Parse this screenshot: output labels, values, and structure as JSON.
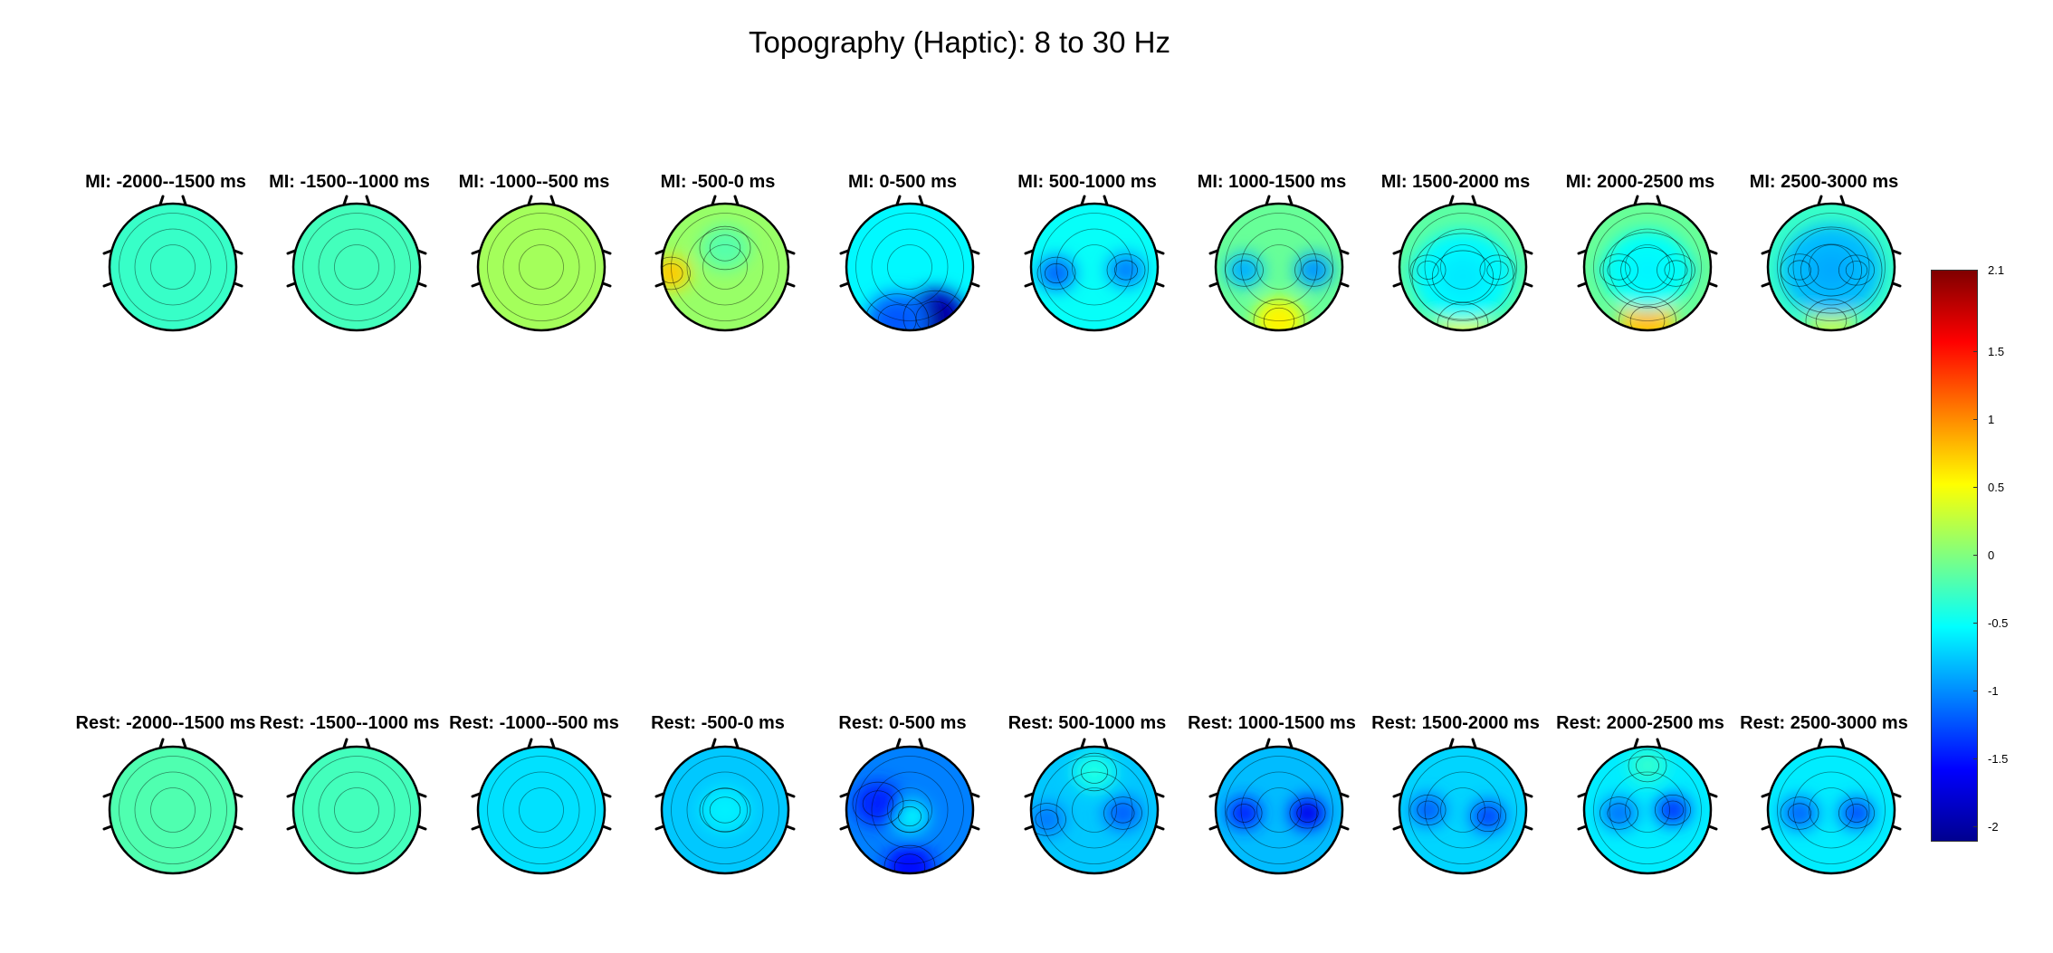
{
  "title": "Topography (Haptic): 8 to 30 Hz",
  "chart_data": {
    "type": "heatmap",
    "title": "Topography (Haptic): 8 to 30 Hz",
    "rows": [
      {
        "condition": "MI",
        "panels": [
          {
            "label": "MI: -2000--1500 ms",
            "base": -0.3,
            "blobs": []
          },
          {
            "label": "MI: -1500--1000 ms",
            "base": -0.25,
            "blobs": []
          },
          {
            "label": "MI: -1000--500 ms",
            "base": 0.15,
            "blobs": []
          },
          {
            "label": "MI: -500-0 ms",
            "base": 0.1,
            "blobs": [
              {
                "u": -0.85,
                "v": 0.1,
                "a": 0.6,
                "r": 0.3
              },
              {
                "u": 0,
                "v": -0.3,
                "a": -0.25,
                "r": 0.4
              }
            ]
          },
          {
            "label": "MI: 0-500 ms",
            "base": -0.55,
            "blobs": [
              {
                "u": 0.4,
                "v": 0.8,
                "a": -1.3,
                "r": 0.5
              },
              {
                "u": -0.2,
                "v": 0.85,
                "a": -0.6,
                "r": 0.5
              }
            ]
          },
          {
            "label": "MI: 500-1000 ms",
            "base": -0.5,
            "blobs": [
              {
                "u": -0.6,
                "v": 0.1,
                "a": -0.6,
                "r": 0.3
              },
              {
                "u": 0.5,
                "v": 0.05,
                "a": -0.5,
                "r": 0.3
              }
            ]
          },
          {
            "label": "MI: 1000-1500 ms",
            "base": -0.1,
            "blobs": [
              {
                "u": -0.55,
                "v": 0.05,
                "a": -0.7,
                "r": 0.3
              },
              {
                "u": 0.55,
                "v": 0.05,
                "a": -0.8,
                "r": 0.3
              },
              {
                "u": 0,
                "v": 0.85,
                "a": 0.6,
                "r": 0.4
              }
            ]
          },
          {
            "label": "MI: 1500-2000 ms",
            "base": -0.15,
            "blobs": [
              {
                "u": -0.55,
                "v": 0.05,
                "a": -0.8,
                "r": 0.28
              },
              {
                "u": 0.55,
                "v": 0.05,
                "a": -0.9,
                "r": 0.28
              },
              {
                "u": 0,
                "v": 0.9,
                "a": 0.5,
                "r": 0.4
              },
              {
                "u": 0,
                "v": 0.15,
                "a": -0.4,
                "r": 0.8
              }
            ]
          },
          {
            "label": "MI: 2000-2500 ms",
            "base": -0.1,
            "blobs": [
              {
                "u": -0.45,
                "v": 0.05,
                "a": -0.8,
                "r": 0.3
              },
              {
                "u": 0.45,
                "v": 0.05,
                "a": -1.1,
                "r": 0.3
              },
              {
                "u": 0,
                "v": 0.85,
                "a": 0.8,
                "r": 0.45
              },
              {
                "u": 0,
                "v": 0.05,
                "a": -0.4,
                "r": 0.7
              }
            ]
          },
          {
            "label": "MI: 2500-3000 ms",
            "base": -0.3,
            "blobs": [
              {
                "u": -0.5,
                "v": 0.05,
                "a": -1.0,
                "r": 0.3
              },
              {
                "u": 0.4,
                "v": 0.05,
                "a": -1.6,
                "r": 0.28
              },
              {
                "u": 0,
                "v": 0.85,
                "a": 0.5,
                "r": 0.4
              },
              {
                "u": 0,
                "v": 0.05,
                "a": -0.5,
                "r": 0.8
              }
            ]
          }
        ]
      },
      {
        "condition": "Rest",
        "panels": [
          {
            "label": "Rest: -2000--1500 ms",
            "base": -0.2,
            "blobs": []
          },
          {
            "label": "Rest: -1500--1000 ms",
            "base": -0.25,
            "blobs": []
          },
          {
            "label": "Rest: -1000--500 ms",
            "base": -0.65,
            "blobs": []
          },
          {
            "label": "Rest: -500-0 ms",
            "base": -0.75,
            "blobs": [
              {
                "u": 0,
                "v": 0,
                "a": 0.15,
                "r": 0.4
              }
            ]
          },
          {
            "label": "Rest: 0-500 ms",
            "base": -1.05,
            "blobs": [
              {
                "u": 0,
                "v": 0.1,
                "a": 0.45,
                "r": 0.3
              },
              {
                "u": -0.5,
                "v": -0.1,
                "a": -0.35,
                "r": 0.4
              },
              {
                "u": 0,
                "v": 0.9,
                "a": -0.45,
                "r": 0.4
              }
            ]
          },
          {
            "label": "Rest: 500-1000 ms",
            "base": -0.75,
            "blobs": [
              {
                "u": -0.75,
                "v": 0.15,
                "a": -0.3,
                "r": 0.3
              },
              {
                "u": 0.45,
                "v": 0.05,
                "a": -0.4,
                "r": 0.3
              },
              {
                "u": 0,
                "v": -0.6,
                "a": 0.3,
                "r": 0.35
              }
            ]
          },
          {
            "label": "Rest: 1000-1500 ms",
            "base": -0.8,
            "blobs": [
              {
                "u": -0.55,
                "v": 0.05,
                "a": -0.6,
                "r": 0.28
              },
              {
                "u": 0.45,
                "v": 0.05,
                "a": -0.8,
                "r": 0.28
              }
            ]
          },
          {
            "label": "Rest: 1500-2000 ms",
            "base": -0.7,
            "blobs": [
              {
                "u": -0.55,
                "v": 0,
                "a": -0.45,
                "r": 0.28
              },
              {
                "u": 0.4,
                "v": 0.1,
                "a": -0.55,
                "r": 0.28
              }
            ]
          },
          {
            "label": "Rest: 2000-2500 ms",
            "base": -0.6,
            "blobs": [
              {
                "u": -0.45,
                "v": 0.05,
                "a": -0.45,
                "r": 0.3
              },
              {
                "u": 0.4,
                "v": 0,
                "a": -0.7,
                "r": 0.28
              },
              {
                "u": 0,
                "v": -0.7,
                "a": 0.25,
                "r": 0.3
              }
            ]
          },
          {
            "label": "Rest: 2500-3000 ms",
            "base": -0.6,
            "blobs": [
              {
                "u": -0.5,
                "v": 0.05,
                "a": -0.5,
                "r": 0.3
              },
              {
                "u": 0.4,
                "v": 0.05,
                "a": -0.6,
                "r": 0.28
              }
            ]
          }
        ]
      }
    ],
    "colorbar": {
      "ticks": [
        "2.1",
        "1.5",
        "1",
        "0.5",
        "0",
        "-0.5",
        "-1",
        "-1.5",
        "-2"
      ],
      "tick_values": [
        2.1,
        1.5,
        1,
        0.5,
        0,
        -0.5,
        -1,
        -1.5,
        -2
      ],
      "range": [
        -2.1,
        2.1
      ],
      "colormap": "jet"
    }
  }
}
